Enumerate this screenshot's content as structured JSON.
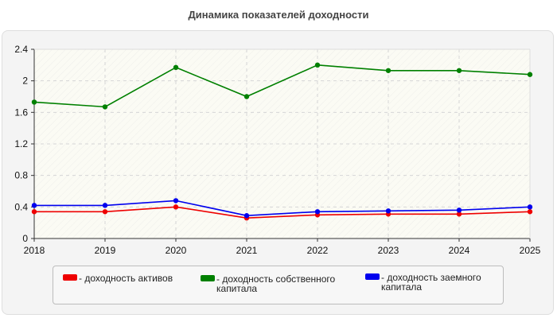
{
  "chart_data": {
    "type": "line",
    "title": "Динамика показателей доходности",
    "xlabel": "",
    "ylabel": "",
    "categories": [
      "2018",
      "2019",
      "2020",
      "2021",
      "2022",
      "2023",
      "2024",
      "2025"
    ],
    "ylim": [
      0,
      2.4
    ],
    "yticks": [
      "0",
      "0.4",
      "0.8",
      "1.2",
      "1.6",
      "2",
      "2.4"
    ],
    "grid": true,
    "legend_position": "bottom",
    "series": [
      {
        "name": "- доходность активов",
        "color": "#ee0000",
        "values": [
          0.34,
          0.34,
          0.4,
          0.26,
          0.3,
          0.31,
          0.31,
          0.34
        ]
      },
      {
        "name": "- доходность собственного капитала",
        "color": "#008000",
        "values": [
          1.73,
          1.67,
          2.17,
          1.8,
          2.2,
          2.13,
          2.13,
          2.08
        ]
      },
      {
        "name": "- доходность заемного капитала",
        "color": "#0000ee",
        "values": [
          0.42,
          0.42,
          0.48,
          0.29,
          0.34,
          0.35,
          0.36,
          0.4
        ]
      }
    ]
  }
}
